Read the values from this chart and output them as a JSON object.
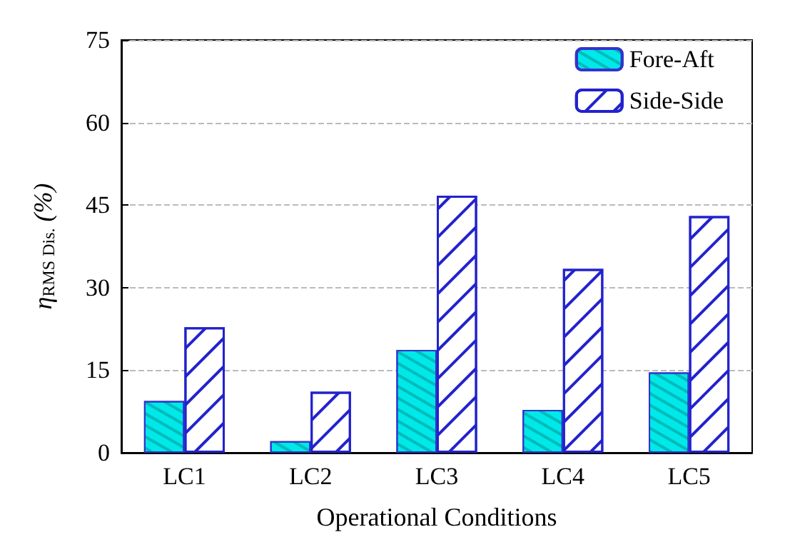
{
  "chart_data": {
    "type": "bar",
    "xlabel": "Operational Conditions",
    "ylabel": "η$_{RMS Dis.}$ (%)",
    "categories": [
      "LC1",
      "LC2",
      "LC3",
      "LC4",
      "LC5"
    ],
    "series": [
      {
        "name": "Fore-Aft",
        "color": "#00e8e8",
        "values": [
          9.4,
          2.1,
          18.7,
          7.8,
          14.6
        ]
      },
      {
        "name": "Side-Side",
        "color": "#2222cc",
        "values": [
          22.8,
          11.1,
          46.7,
          33.4,
          43.0
        ]
      }
    ],
    "ylim": [
      0,
      75
    ],
    "yticks": [
      0,
      15,
      30,
      45,
      60,
      75
    ],
    "grid": "y",
    "legend": "top right"
  }
}
